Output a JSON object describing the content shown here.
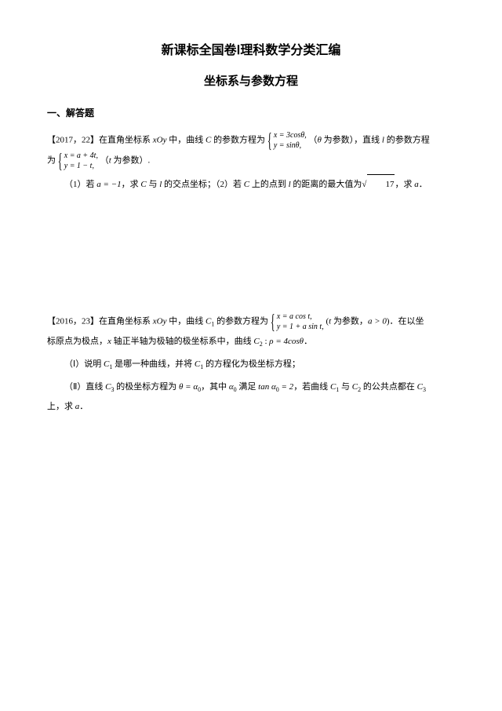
{
  "doc": {
    "title_main": "新课标全国卷Ⅰ理科数学分类汇编",
    "title_sub": "坐标系与参数方程",
    "section_heading": "一、解答题",
    "p1": {
      "tag": "【2017，22】",
      "t1a": "在直角坐标系 ",
      "coord": "xOy",
      "t1b": " 中，曲线 ",
      "C": "C",
      "t1c": " 的参数方程为",
      "eq1_r1": "x = 3cosθ,",
      "eq1_r2": "y = sinθ,",
      "t1d": "（",
      "theta": "θ",
      "t1e": " 为参数），直线 ",
      "l": "l",
      "t1f": " 的参数方程",
      "t2a": "为",
      "eq2_r1": "x = a + 4t,",
      "eq2_r2": "y = 1 − t,",
      "t2b": "（",
      "tvar": "t",
      "t2c": " 为参数）.",
      "q1a": "（1）若 ",
      "a_eq": "a = −1",
      "q1b": "，求 ",
      "q1c": " 与 ",
      "q1d": " 的交点坐标；（2）若 ",
      "q1e": " 上的点到 ",
      "q1f": " 的距离的最大值为",
      "sqrt17": "17",
      "q1g": "，求 ",
      "avar": "a",
      "q1h": "．"
    },
    "p2": {
      "tag": "【2016，23】",
      "t1a": "在直角坐标系 ",
      "coord": "xOy",
      "t1b": " 中，曲线 ",
      "C1": "C",
      "C1sub": "1",
      "t1c": " 的参数方程为",
      "eq_r1": "x = a cos t,",
      "eq_r2": "y = 1 + a sin t,",
      "t1d": "(",
      "tvar": "t",
      "t1e": " 为参数，",
      "a_gt": "a > 0",
      "t1f": ")．在以坐",
      "t2a": "标原点为极点，",
      "xvar": "x",
      "t2b": " 轴正半轴为极轴的极坐标系中，曲线 ",
      "C2": "C",
      "C2sub": "2",
      "colon": " : ",
      "rho_eq": "ρ = 4cosθ",
      "t2c": "．",
      "q1a": "（Ⅰ）说明 ",
      "q1b": " 是哪一种曲线，并将 ",
      "q1c": " 的方程化为极坐标方程；",
      "q2a": "（Ⅱ）直线 ",
      "C3": "C",
      "C3sub": "3",
      "q2b": " 的极坐标方程为 ",
      "theta_eq": "θ = α",
      "sub0": "0",
      "q2c": "，其中 ",
      "alpha0": "α",
      "q2d": " 满足 ",
      "tan_eq": "tan α",
      "eq2": " = 2",
      "q2e": "，若曲线 ",
      "q2f": " 与 ",
      "q2g": " 的公共点都在 ",
      "t3a": "上，求 ",
      "avar": "a",
      "t3b": "．"
    }
  }
}
